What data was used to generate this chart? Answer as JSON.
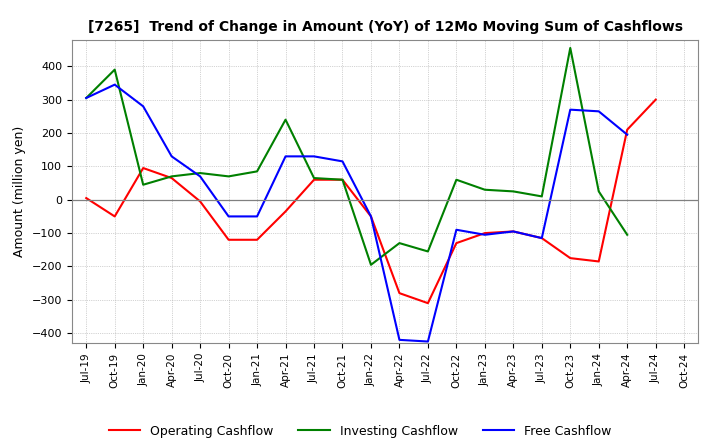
{
  "title": "[7265]  Trend of Change in Amount (YoY) of 12Mo Moving Sum of Cashflows",
  "ylabel": "Amount (million yen)",
  "ylim": [
    -430,
    480
  ],
  "yticks": [
    -400,
    -300,
    -200,
    -100,
    0,
    100,
    200,
    300,
    400
  ],
  "x_labels": [
    "Jul-19",
    "Oct-19",
    "Jan-20",
    "Apr-20",
    "Jul-20",
    "Oct-20",
    "Jan-21",
    "Apr-21",
    "Jul-21",
    "Oct-21",
    "Jan-22",
    "Apr-22",
    "Jul-22",
    "Oct-22",
    "Jan-23",
    "Apr-23",
    "Jul-23",
    "Oct-23",
    "Jan-24",
    "Apr-24",
    "Jul-24",
    "Oct-24"
  ],
  "operating": [
    5,
    -50,
    95,
    65,
    -5,
    -120,
    -120,
    -35,
    60,
    60,
    -50,
    -280,
    -310,
    -130,
    -100,
    -95,
    -115,
    -175,
    -185,
    210,
    300,
    null
  ],
  "investing": [
    305,
    390,
    45,
    70,
    80,
    70,
    85,
    240,
    65,
    60,
    -195,
    -130,
    -155,
    60,
    30,
    25,
    10,
    455,
    25,
    -105,
    null,
    null
  ],
  "free": [
    305,
    345,
    280,
    130,
    70,
    -50,
    -50,
    130,
    130,
    115,
    -50,
    -420,
    -425,
    -90,
    -105,
    -95,
    -115,
    270,
    265,
    195,
    null,
    null
  ],
  "op_color": "#ff0000",
  "inv_color": "#008000",
  "free_color": "#0000ff",
  "bg_color": "#ffffff",
  "grid_color": "#aaaaaa"
}
